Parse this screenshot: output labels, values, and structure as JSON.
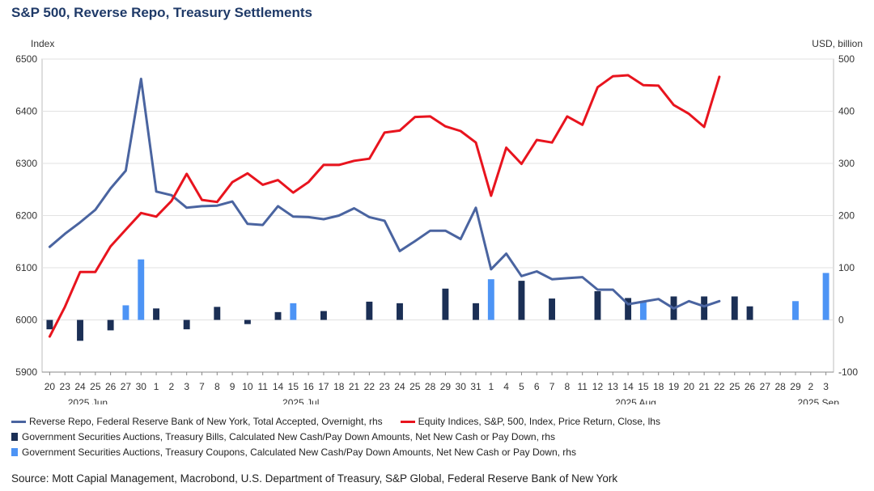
{
  "title": "S&P 500, Reverse Repo, Treasury Settlements",
  "left_unit": "Index",
  "right_unit": "USD, billion",
  "legend": [
    {
      "label": "Reverse Repo, Federal Reserve Bank of New York, Total Accepted, Overnight, rhs",
      "color": "#4a64a0",
      "kind": "line"
    },
    {
      "label": "Equity Indices, S&P, 500, Index, Price Return, Close, lhs",
      "color": "#e8141e",
      "kind": "line"
    },
    {
      "label": "Government Securities Auctions, Treasury Bills, Calculated New Cash/Pay Down Amounts, Net New Cash or Pay Down, rhs",
      "color": "#1b2f55",
      "kind": "bar"
    },
    {
      "label": "Government Securities Auctions, Treasury Coupons, Calculated New Cash/Pay Down Amounts, Net New Cash or Pay Down, rhs",
      "color": "#4d94f5",
      "kind": "bar"
    }
  ],
  "source": "Source: Mott Capial Management, Macrobond, U.S. Department of Treasury, S&P Global, Federal Reserve Bank of New York",
  "chart_data": {
    "type": "line",
    "x_labels": [
      "20",
      "23",
      "24",
      "25",
      "26",
      "27",
      "30",
      "1",
      "2",
      "3",
      "7",
      "8",
      "9",
      "10",
      "11",
      "14",
      "15",
      "16",
      "17",
      "18",
      "21",
      "22",
      "23",
      "24",
      "25",
      "28",
      "29",
      "30",
      "31",
      "1",
      "4",
      "5",
      "6",
      "7",
      "8",
      "11",
      "12",
      "13",
      "14",
      "15",
      "18",
      "19",
      "20",
      "21",
      "22",
      "25",
      "26",
      "27",
      "28",
      "29",
      "2",
      "3"
    ],
    "months": [
      {
        "label": "2025 Jun",
        "index": 2.5
      },
      {
        "label": "2025 Jul",
        "index": 16.5
      },
      {
        "label": "2025 Aug",
        "index": 38.5
      },
      {
        "label": "2025 Sep",
        "index": 50.5
      }
    ],
    "y_left": {
      "label": "Index",
      "min": 5900,
      "max": 6500,
      "ticks": [
        5900,
        6000,
        6100,
        6200,
        6300,
        6400,
        6500
      ]
    },
    "y_right": {
      "label": "USD, billion",
      "min": -100,
      "max": 500,
      "ticks": [
        -100,
        0,
        100,
        200,
        300,
        400,
        500
      ]
    },
    "grid": true,
    "legend_position": "bottom",
    "series": [
      {
        "name": "Reverse Repo, Federal Reserve Bank of New York, Total Accepted, Overnight, rhs",
        "axis": "right",
        "type": "line",
        "color": "#4a64a0",
        "values": [
          140,
          165,
          187,
          211,
          252,
          286,
          462,
          246,
          239,
          215,
          218,
          219,
          227,
          184,
          182,
          218,
          198,
          197,
          193,
          200,
          214,
          197,
          190,
          132,
          151,
          171,
          171,
          155,
          215,
          97,
          127,
          84,
          93,
          78,
          80,
          82,
          58,
          58,
          30,
          35,
          40,
          22,
          36,
          26,
          36,
          null,
          null,
          null,
          null,
          null,
          null,
          null
        ]
      },
      {
        "name": "Equity Indices, S&P, 500, Index, Price Return, Close, lhs",
        "axis": "left",
        "type": "line",
        "color": "#e8141e",
        "values": [
          5968,
          6025,
          6092,
          6092,
          6141,
          6173,
          6205,
          6198,
          6228,
          6280,
          6230,
          6226,
          6264,
          6281,
          6259,
          6268,
          6244,
          6264,
          6297,
          6297,
          6305,
          6309,
          6359,
          6363,
          6389,
          6390,
          6371,
          6362,
          6340,
          6238,
          6330,
          6299,
          6345,
          6340,
          6390,
          6374,
          6446,
          6467,
          6469,
          6450,
          6449,
          6412,
          6395,
          6370,
          6466,
          null,
          null,
          null,
          null,
          null,
          null,
          null
        ]
      },
      {
        "name": "Government Securities Auctions, Treasury Bills, Calculated New Cash/Pay Down Amounts, Net New Cash or Pay Down, rhs",
        "axis": "right",
        "type": "bar",
        "color": "#1b2f55",
        "values": [
          -18,
          0,
          -40,
          0,
          -20,
          0,
          0,
          22,
          0,
          -18,
          0,
          25,
          0,
          -8,
          0,
          15,
          0,
          0,
          17,
          0,
          0,
          35,
          0,
          32,
          0,
          0,
          60,
          0,
          32,
          0,
          0,
          75,
          0,
          41,
          0,
          0,
          55,
          0,
          42,
          0,
          0,
          45,
          0,
          45,
          0,
          45,
          26,
          0,
          0,
          0,
          0,
          0
        ]
      },
      {
        "name": "Government Securities Auctions, Treasury Coupons, Calculated New Cash/Pay Down Amounts, Net New Cash or Pay Down, rhs",
        "axis": "right",
        "type": "bar",
        "color": "#4d94f5",
        "values": [
          0,
          0,
          0,
          0,
          0,
          28,
          116,
          0,
          0,
          0,
          0,
          0,
          0,
          0,
          0,
          0,
          32,
          0,
          0,
          0,
          0,
          0,
          0,
          0,
          0,
          0,
          0,
          0,
          0,
          78,
          0,
          0,
          0,
          0,
          0,
          0,
          0,
          0,
          0,
          35,
          0,
          0,
          0,
          0,
          0,
          0,
          0,
          0,
          0,
          36,
          0,
          90
        ]
      }
    ]
  }
}
